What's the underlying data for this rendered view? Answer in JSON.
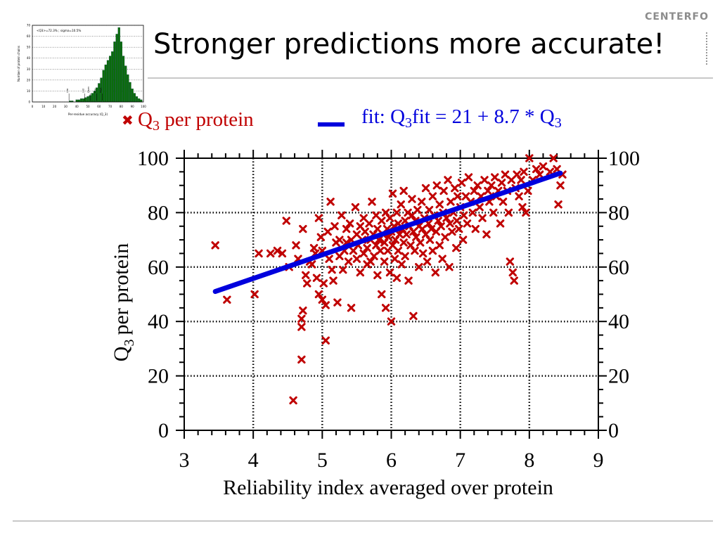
{
  "page": {
    "logo": "CENTERFO",
    "title": "Stronger predictions more accurate!"
  },
  "thumbnail": {
    "caption": "<Q3>=72.3% ; sigma=10.5%",
    "ylabel": "Number of protein chains",
    "xlabel": "Per-residue accuracy (Q_3)",
    "yticks": [
      "0",
      "10",
      "20",
      "30",
      "40",
      "50",
      "60",
      "70"
    ],
    "xticks": [
      "0",
      "10",
      "20",
      "30",
      "40",
      "50",
      "60",
      "70",
      "80",
      "90",
      "100"
    ],
    "annotations": [
      "Lim",
      "Lsd",
      "Qsen",
      "Gor",
      "Mult"
    ],
    "bar_color": "#0a6e0a",
    "chart_data": {
      "type": "bar",
      "x": [
        34,
        36,
        38,
        40,
        42,
        44,
        46,
        48,
        50,
        52,
        54,
        56,
        58,
        60,
        62,
        64,
        66,
        68,
        70,
        72,
        74,
        76,
        78,
        80,
        82,
        84,
        86,
        88,
        90,
        92,
        94,
        96,
        98
      ],
      "values": [
        1,
        1,
        0,
        2,
        2,
        3,
        3,
        4,
        5,
        6,
        8,
        10,
        13,
        17,
        22,
        29,
        34,
        38,
        42,
        46,
        55,
        62,
        68,
        55,
        42,
        33,
        25,
        18,
        12,
        8,
        5,
        3,
        2
      ],
      "xlim": [
        0,
        100
      ],
      "ylim": [
        0,
        70
      ]
    }
  },
  "legend": {
    "points_label": "Q",
    "points_sub": "3",
    "points_rest": "per protein",
    "fit_prefix": "fit: Q",
    "fit_sub1": "3",
    "fit_mid": "fit = 21 + 8.7 * Q",
    "fit_sub2": "3"
  },
  "chart_data": {
    "type": "scatter",
    "xlabel": "Reliability index averaged over protein",
    "ylabel_main": "Q",
    "ylabel_sub": "3",
    "ylabel_rest": "per protein",
    "xlim": [
      3,
      9
    ],
    "ylim": [
      0,
      100
    ],
    "xticks": [
      3,
      4,
      5,
      6,
      7,
      8,
      9
    ],
    "yticks": [
      0,
      20,
      40,
      60,
      80,
      100
    ],
    "grid": true,
    "right_axis_ticks": true,
    "point_color": "#c00000",
    "fit_color": "#0000dd",
    "series": [
      {
        "name": "Q3 per protein",
        "points": [
          [
            3.45,
            68
          ],
          [
            3.62,
            48
          ],
          [
            4.02,
            50
          ],
          [
            4.08,
            65
          ],
          [
            4.25,
            65
          ],
          [
            4.35,
            66
          ],
          [
            4.42,
            65
          ],
          [
            4.48,
            77
          ],
          [
            4.52,
            60
          ],
          [
            4.58,
            11
          ],
          [
            4.62,
            68
          ],
          [
            4.65,
            63
          ],
          [
            4.7,
            26
          ],
          [
            4.7,
            38
          ],
          [
            4.7,
            41
          ],
          [
            4.72,
            44
          ],
          [
            4.72,
            74
          ],
          [
            4.76,
            57
          ],
          [
            4.78,
            54
          ],
          [
            4.82,
            62
          ],
          [
            4.85,
            61
          ],
          [
            4.88,
            67
          ],
          [
            4.9,
            65
          ],
          [
            4.92,
            56
          ],
          [
            4.95,
            78
          ],
          [
            4.95,
            50
          ],
          [
            4.98,
            71
          ],
          [
            5.0,
            66
          ],
          [
            5.0,
            48
          ],
          [
            5.02,
            54
          ],
          [
            5.05,
            46
          ],
          [
            5.05,
            33
          ],
          [
            5.08,
            73
          ],
          [
            5.1,
            63
          ],
          [
            5.12,
            84
          ],
          [
            5.14,
            59
          ],
          [
            5.16,
            55
          ],
          [
            5.18,
            75
          ],
          [
            5.2,
            69
          ],
          [
            5.22,
            47
          ],
          [
            5.25,
            64
          ],
          [
            5.25,
            70
          ],
          [
            5.28,
            79
          ],
          [
            5.3,
            59
          ],
          [
            5.32,
            66
          ],
          [
            5.35,
            74
          ],
          [
            5.35,
            69
          ],
          [
            5.38,
            62
          ],
          [
            5.4,
            76
          ],
          [
            5.42,
            70
          ],
          [
            5.42,
            45
          ],
          [
            5.45,
            66
          ],
          [
            5.48,
            82
          ],
          [
            5.5,
            72
          ],
          [
            5.5,
            63
          ],
          [
            5.52,
            68
          ],
          [
            5.55,
            75
          ],
          [
            5.55,
            58
          ],
          [
            5.58,
            70
          ],
          [
            5.6,
            65
          ],
          [
            5.6,
            78
          ],
          [
            5.62,
            73
          ],
          [
            5.65,
            67
          ],
          [
            5.65,
            61
          ],
          [
            5.68,
            76
          ],
          [
            5.7,
            70
          ],
          [
            5.7,
            62
          ],
          [
            5.72,
            84
          ],
          [
            5.74,
            72
          ],
          [
            5.75,
            64
          ],
          [
            5.78,
            68
          ],
          [
            5.78,
            79
          ],
          [
            5.8,
            74
          ],
          [
            5.8,
            57
          ],
          [
            5.82,
            70
          ],
          [
            5.84,
            66
          ],
          [
            5.86,
            77
          ],
          [
            5.86,
            50
          ],
          [
            5.88,
            72
          ],
          [
            5.9,
            62
          ],
          [
            5.9,
            69
          ],
          [
            5.92,
            80
          ],
          [
            5.92,
            45
          ],
          [
            5.94,
            74
          ],
          [
            5.95,
            66
          ],
          [
            5.96,
            71
          ],
          [
            5.98,
            58
          ],
          [
            5.98,
            78
          ],
          [
            6.0,
            40
          ],
          [
            6.0,
            73
          ],
          [
            6.02,
            68
          ],
          [
            6.02,
            87
          ],
          [
            6.04,
            75
          ],
          [
            6.05,
            63
          ],
          [
            6.06,
            70
          ],
          [
            6.08,
            80
          ],
          [
            6.08,
            56
          ],
          [
            6.1,
            76
          ],
          [
            6.1,
            66
          ],
          [
            6.12,
            72
          ],
          [
            6.14,
            83
          ],
          [
            6.15,
            61
          ],
          [
            6.16,
            74
          ],
          [
            6.18,
            69
          ],
          [
            6.18,
            88
          ],
          [
            6.2,
            77
          ],
          [
            6.2,
            64
          ],
          [
            6.22,
            72
          ],
          [
            6.24,
            80
          ],
          [
            6.25,
            55
          ],
          [
            6.26,
            75
          ],
          [
            6.28,
            68
          ],
          [
            6.3,
            79
          ],
          [
            6.3,
            85
          ],
          [
            6.32,
            42
          ],
          [
            6.32,
            73
          ],
          [
            6.34,
            66
          ],
          [
            6.35,
            77
          ],
          [
            6.36,
            71
          ],
          [
            6.38,
            81
          ],
          [
            6.4,
            60
          ],
          [
            6.4,
            75
          ],
          [
            6.42,
            69
          ],
          [
            6.44,
            84
          ],
          [
            6.45,
            74
          ],
          [
            6.46,
            65
          ],
          [
            6.48,
            78
          ],
          [
            6.5,
            72
          ],
          [
            6.5,
            89
          ],
          [
            6.52,
            62
          ],
          [
            6.54,
            76
          ],
          [
            6.55,
            81
          ],
          [
            6.56,
            70
          ],
          [
            6.58,
            74
          ],
          [
            6.6,
            66
          ],
          [
            6.6,
            86
          ],
          [
            6.62,
            79
          ],
          [
            6.64,
            58
          ],
          [
            6.65,
            73
          ],
          [
            6.66,
            90
          ],
          [
            6.68,
            77
          ],
          [
            6.7,
            68
          ],
          [
            6.7,
            83
          ],
          [
            6.72,
            75
          ],
          [
            6.74,
            63
          ],
          [
            6.75,
            80
          ],
          [
            6.76,
            88
          ],
          [
            6.78,
            71
          ],
          [
            6.8,
            78
          ],
          [
            6.82,
            92
          ],
          [
            6.84,
            60
          ],
          [
            6.85,
            76
          ],
          [
            6.86,
            84
          ],
          [
            6.88,
            73
          ],
          [
            6.9,
            80
          ],
          [
            6.92,
            89
          ],
          [
            6.94,
            67
          ],
          [
            6.95,
            77
          ],
          [
            6.96,
            86
          ],
          [
            6.98,
            74
          ],
          [
            7.0,
            82
          ],
          [
            7.02,
            91
          ],
          [
            7.04,
            70
          ],
          [
            7.05,
            79
          ],
          [
            7.08,
            86
          ],
          [
            7.1,
            76
          ],
          [
            7.12,
            93
          ],
          [
            7.15,
            84
          ],
          [
            7.18,
            80
          ],
          [
            7.2,
            88
          ],
          [
            7.22,
            74
          ],
          [
            7.25,
            90
          ],
          [
            7.28,
            82
          ],
          [
            7.3,
            86
          ],
          [
            7.32,
            78
          ],
          [
            7.35,
            92
          ],
          [
            7.38,
            72
          ],
          [
            7.4,
            88
          ],
          [
            7.42,
            84
          ],
          [
            7.45,
            90
          ],
          [
            7.48,
            80
          ],
          [
            7.5,
            93
          ],
          [
            7.52,
            86
          ],
          [
            7.55,
            88
          ],
          [
            7.58,
            76
          ],
          [
            7.6,
            91
          ],
          [
            7.62,
            84
          ],
          [
            7.65,
            94
          ],
          [
            7.68,
            88
          ],
          [
            7.7,
            80
          ],
          [
            7.72,
            62
          ],
          [
            7.74,
            92
          ],
          [
            7.76,
            58
          ],
          [
            7.78,
            55
          ],
          [
            7.8,
            89
          ],
          [
            7.82,
            94
          ],
          [
            7.85,
            86
          ],
          [
            7.88,
            92
          ],
          [
            7.9,
            82
          ],
          [
            7.92,
            95
          ],
          [
            7.95,
            80
          ],
          [
            7.98,
            88
          ],
          [
            8.0,
            100
          ],
          [
            8.05,
            92
          ],
          [
            8.1,
            96
          ],
          [
            8.15,
            94
          ],
          [
            8.2,
            97
          ],
          [
            8.3,
            95
          ],
          [
            8.35,
            100
          ],
          [
            8.4,
            96
          ],
          [
            8.42,
            83
          ],
          [
            8.45,
            90
          ],
          [
            8.48,
            94
          ]
        ]
      }
    ],
    "fit": {
      "name": "fit",
      "intercept": 21,
      "slope": 8.7,
      "x_range": [
        3.45,
        8.45
      ]
    }
  }
}
